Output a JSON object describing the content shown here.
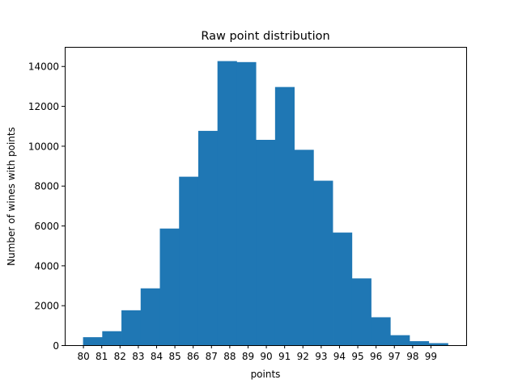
{
  "chart_data": {
    "type": "bar",
    "title": "Raw point distribution",
    "xlabel": "points",
    "ylabel": "Number of wines with points",
    "bins": [
      {
        "start": 80.0,
        "end": 81.05,
        "value": 400
      },
      {
        "start": 81.05,
        "end": 82.1,
        "value": 700
      },
      {
        "start": 82.1,
        "end": 83.15,
        "value": 1750
      },
      {
        "start": 83.15,
        "end": 84.2,
        "value": 2850
      },
      {
        "start": 84.2,
        "end": 85.25,
        "value": 5850
      },
      {
        "start": 85.25,
        "end": 86.3,
        "value": 8450
      },
      {
        "start": 86.3,
        "end": 87.35,
        "value": 10750
      },
      {
        "start": 87.35,
        "end": 88.4,
        "value": 14250
      },
      {
        "start": 88.4,
        "end": 89.45,
        "value": 14200
      },
      {
        "start": 89.45,
        "end": 90.5,
        "value": 10300
      },
      {
        "start": 90.5,
        "end": 91.55,
        "value": 12950
      },
      {
        "start": 91.55,
        "end": 92.6,
        "value": 9800
      },
      {
        "start": 92.6,
        "end": 93.65,
        "value": 8250
      },
      {
        "start": 93.65,
        "end": 94.7,
        "value": 5650
      },
      {
        "start": 94.7,
        "end": 95.75,
        "value": 3350
      },
      {
        "start": 95.75,
        "end": 96.8,
        "value": 1400
      },
      {
        "start": 96.8,
        "end": 97.85,
        "value": 500
      },
      {
        "start": 97.85,
        "end": 98.9,
        "value": 200
      },
      {
        "start": 98.9,
        "end": 99.95,
        "value": 100
      }
    ],
    "xticks": [
      "80",
      "81",
      "82",
      "83",
      "84",
      "85",
      "86",
      "87",
      "88",
      "89",
      "90",
      "91",
      "92",
      "93",
      "94",
      "95",
      "96",
      "97",
      "98",
      "99"
    ],
    "yticks": [
      "0",
      "2000",
      "4000",
      "6000",
      "8000",
      "10000",
      "12000",
      "14000"
    ],
    "xlim": [
      79.0,
      100.95
    ],
    "ylim": [
      0,
      14963
    ],
    "bar_color": "#1f77b4",
    "grid": false,
    "legend": "none"
  }
}
